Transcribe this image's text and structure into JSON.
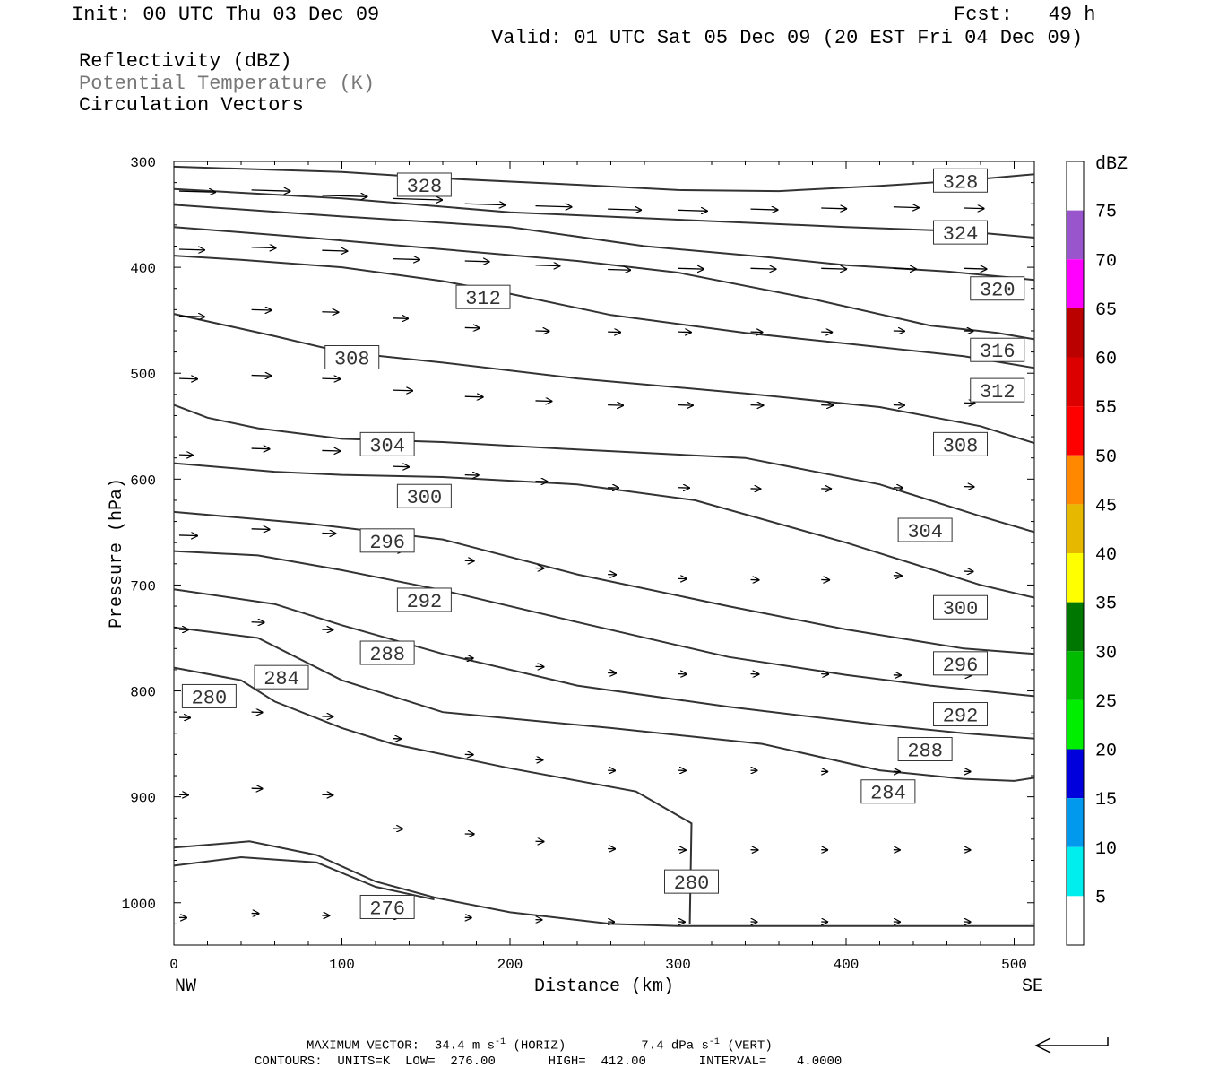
{
  "header": {
    "init": "Init: 00 UTC Thu 03 Dec 09",
    "fcst": "Fcst:   49 h",
    "valid": "Valid: 01 UTC Sat 05 Dec 09 (20 EST Fri 04 Dec 09)"
  },
  "legend_lines": {
    "reflectivity": "Reflectivity (dBZ)",
    "theta": "Potential Temperature (K)",
    "vectors": "Circulation Vectors"
  },
  "chart_data": {
    "type": "line",
    "xlabel": "Distance (km)",
    "ylabel": "Pressure (hPa)",
    "xlim": [
      0,
      512
    ],
    "ylim": [
      300,
      1040
    ],
    "y_scale": "pressure-inverted",
    "grid": false,
    "x_ticks": [
      0,
      100,
      200,
      300,
      400,
      500
    ],
    "y_ticks": [
      300,
      400,
      500,
      600,
      700,
      800,
      900,
      1000
    ],
    "x_endpoint_labels": {
      "left": "NW",
      "right": "SE"
    },
    "contour_interval": 4,
    "series": [
      {
        "name": "276",
        "points": [
          [
            0,
            965
          ],
          [
            40,
            957
          ],
          [
            85,
            962
          ],
          [
            120,
            985
          ],
          [
            155,
            997
          ]
        ]
      },
      {
        "name": "276",
        "points": [
          [
            0,
            948
          ],
          [
            45,
            942
          ],
          [
            85,
            955
          ],
          [
            120,
            980
          ],
          [
            155,
            995
          ],
          [
            200,
            1009
          ],
          [
            260,
            1020
          ],
          [
            300,
            1022
          ],
          [
            512,
            1022
          ]
        ]
      },
      {
        "name": "280",
        "points": [
          [
            0,
            778
          ],
          [
            40,
            790
          ],
          [
            60,
            810
          ],
          [
            100,
            835
          ],
          [
            130,
            850
          ],
          [
            200,
            873
          ],
          [
            275,
            895
          ],
          [
            308,
            925
          ],
          [
            307,
            1020
          ]
        ]
      },
      {
        "name": "284",
        "points": [
          [
            0,
            740
          ],
          [
            50,
            750
          ],
          [
            100,
            790
          ],
          [
            160,
            820
          ],
          [
            260,
            835
          ],
          [
            350,
            850
          ],
          [
            420,
            875
          ],
          [
            470,
            883
          ],
          [
            500,
            885
          ],
          [
            512,
            882
          ]
        ]
      },
      {
        "name": "288",
        "points": [
          [
            0,
            704
          ],
          [
            60,
            718
          ],
          [
            100,
            738
          ],
          [
            160,
            765
          ],
          [
            240,
            795
          ],
          [
            330,
            815
          ],
          [
            420,
            832
          ],
          [
            470,
            840
          ],
          [
            512,
            845
          ]
        ]
      },
      {
        "name": "292",
        "points": [
          [
            0,
            668
          ],
          [
            50,
            672
          ],
          [
            100,
            686
          ],
          [
            160,
            705
          ],
          [
            240,
            735
          ],
          [
            330,
            768
          ],
          [
            400,
            785
          ],
          [
            450,
            795
          ],
          [
            512,
            805
          ]
        ]
      },
      {
        "name": "296",
        "points": [
          [
            0,
            631
          ],
          [
            80,
            642
          ],
          [
            160,
            657
          ],
          [
            240,
            690
          ],
          [
            330,
            720
          ],
          [
            400,
            742
          ],
          [
            470,
            760
          ],
          [
            512,
            765
          ]
        ]
      },
      {
        "name": "300",
        "points": [
          [
            0,
            585
          ],
          [
            60,
            593
          ],
          [
            100,
            596
          ],
          [
            160,
            598
          ],
          [
            240,
            605
          ],
          [
            310,
            620
          ],
          [
            400,
            660
          ],
          [
            480,
            700
          ],
          [
            512,
            712
          ]
        ]
      },
      {
        "name": "304",
        "points": [
          [
            0,
            530
          ],
          [
            20,
            542
          ],
          [
            50,
            552
          ],
          [
            100,
            562
          ],
          [
            160,
            565
          ],
          [
            240,
            572
          ],
          [
            340,
            580
          ],
          [
            420,
            605
          ],
          [
            480,
            635
          ],
          [
            512,
            650
          ]
        ]
      },
      {
        "name": "308",
        "points": [
          [
            0,
            444
          ],
          [
            60,
            465
          ],
          [
            100,
            480
          ],
          [
            160,
            490
          ],
          [
            240,
            505
          ],
          [
            340,
            519
          ],
          [
            420,
            532
          ],
          [
            480,
            550
          ],
          [
            512,
            566
          ]
        ]
      },
      {
        "name": "312",
        "points": [
          [
            0,
            389
          ],
          [
            40,
            393
          ],
          [
            100,
            400
          ],
          [
            160,
            413
          ],
          [
            200,
            425
          ],
          [
            260,
            445
          ],
          [
            340,
            462
          ],
          [
            400,
            472
          ],
          [
            470,
            484
          ],
          [
            512,
            495
          ]
        ]
      },
      {
        "name": "316",
        "points": [
          [
            0,
            362
          ],
          [
            80,
            372
          ],
          [
            160,
            383
          ],
          [
            240,
            394
          ],
          [
            300,
            405
          ],
          [
            380,
            430
          ],
          [
            450,
            455
          ],
          [
            490,
            462
          ],
          [
            512,
            468
          ]
        ]
      },
      {
        "name": "320",
        "points": [
          [
            0,
            341
          ],
          [
            100,
            352
          ],
          [
            200,
            362
          ],
          [
            280,
            380
          ],
          [
            350,
            390
          ],
          [
            400,
            398
          ],
          [
            460,
            404
          ],
          [
            500,
            410
          ],
          [
            512,
            412
          ]
        ]
      },
      {
        "name": "324",
        "points": [
          [
            0,
            326
          ],
          [
            100,
            335
          ],
          [
            200,
            348
          ],
          [
            300,
            355
          ],
          [
            400,
            362
          ],
          [
            470,
            366
          ],
          [
            512,
            372
          ]
        ]
      },
      {
        "name": "328",
        "points": [
          [
            0,
            305
          ],
          [
            100,
            310
          ],
          [
            160,
            316
          ],
          [
            240,
            322
          ],
          [
            300,
            327
          ],
          [
            360,
            328
          ],
          [
            420,
            323
          ],
          [
            470,
            318
          ],
          [
            512,
            312
          ]
        ]
      }
    ],
    "contour_labels": [
      {
        "text": "328",
        "x": 149,
        "y": 322
      },
      {
        "text": "328",
        "x": 468,
        "y": 318
      },
      {
        "text": "324",
        "x": 468,
        "y": 367
      },
      {
        "text": "320",
        "x": 490,
        "y": 420
      },
      {
        "text": "316",
        "x": 490,
        "y": 478
      },
      {
        "text": "312",
        "x": 184,
        "y": 428
      },
      {
        "text": "312",
        "x": 490,
        "y": 516
      },
      {
        "text": "308",
        "x": 106,
        "y": 485
      },
      {
        "text": "308",
        "x": 468,
        "y": 567
      },
      {
        "text": "304",
        "x": 127,
        "y": 567
      },
      {
        "text": "304",
        "x": 447,
        "y": 648
      },
      {
        "text": "300",
        "x": 149,
        "y": 616
      },
      {
        "text": "300",
        "x": 468,
        "y": 721
      },
      {
        "text": "296",
        "x": 127,
        "y": 658
      },
      {
        "text": "296",
        "x": 468,
        "y": 774
      },
      {
        "text": "292",
        "x": 149,
        "y": 714
      },
      {
        "text": "292",
        "x": 468,
        "y": 822
      },
      {
        "text": "288",
        "x": 127,
        "y": 764
      },
      {
        "text": "288",
        "x": 447,
        "y": 855
      },
      {
        "text": "284",
        "x": 64,
        "y": 787
      },
      {
        "text": "284",
        "x": 425,
        "y": 895
      },
      {
        "text": "280",
        "x": 21,
        "y": 805
      },
      {
        "text": "280",
        "x": 308,
        "y": 980
      },
      {
        "text": "276",
        "x": 127,
        "y": 1004
      }
    ],
    "vectors": {
      "note": "Circulation vectors",
      "items": [
        [
          0,
          328,
          40
        ],
        [
          43,
          327,
          43
        ],
        [
          85,
          332,
          50
        ],
        [
          127,
          335,
          55
        ],
        [
          170,
          340,
          45
        ],
        [
          212,
          342,
          40
        ],
        [
          255,
          345,
          37
        ],
        [
          297,
          346,
          32
        ],
        [
          340,
          345,
          30
        ],
        [
          382,
          344,
          28
        ],
        [
          425,
          343,
          28
        ],
        [
          467,
          344,
          22
        ],
        [
          0,
          383,
          28
        ],
        [
          43,
          381,
          27
        ],
        [
          85,
          384,
          28
        ],
        [
          127,
          392,
          30
        ],
        [
          170,
          394,
          27
        ],
        [
          212,
          398,
          27
        ],
        [
          255,
          402,
          25
        ],
        [
          297,
          401,
          28
        ],
        [
          340,
          401,
          28
        ],
        [
          382,
          401,
          28
        ],
        [
          425,
          401,
          25
        ],
        [
          467,
          401,
          25
        ],
        [
          0,
          446,
          28
        ],
        [
          43,
          440,
          22
        ],
        [
          85,
          442,
          18
        ],
        [
          127,
          448,
          17
        ],
        [
          170,
          457,
          16
        ],
        [
          212,
          460,
          15
        ],
        [
          255,
          461,
          14
        ],
        [
          297,
          461,
          14
        ],
        [
          340,
          461,
          13
        ],
        [
          382,
          461,
          12
        ],
        [
          425,
          460,
          12
        ],
        [
          467,
          460,
          10
        ],
        [
          0,
          505,
          20
        ],
        [
          43,
          502,
          22
        ],
        [
          85,
          505,
          20
        ],
        [
          127,
          516,
          22
        ],
        [
          170,
          522,
          20
        ],
        [
          212,
          526,
          18
        ],
        [
          255,
          530,
          17
        ],
        [
          297,
          530,
          16
        ],
        [
          340,
          530,
          14
        ],
        [
          382,
          530,
          13
        ],
        [
          425,
          530,
          12
        ],
        [
          467,
          528,
          12
        ],
        [
          0,
          577,
          15
        ],
        [
          43,
          571,
          20
        ],
        [
          85,
          573,
          20
        ],
        [
          127,
          588,
          18
        ],
        [
          170,
          596,
          15
        ],
        [
          212,
          602,
          13
        ],
        [
          255,
          608,
          12
        ],
        [
          297,
          608,
          12
        ],
        [
          340,
          609,
          11
        ],
        [
          382,
          609,
          11
        ],
        [
          425,
          608,
          10
        ],
        [
          467,
          607,
          11
        ],
        [
          0,
          653,
          20
        ],
        [
          43,
          647,
          20
        ],
        [
          85,
          651,
          15
        ],
        [
          127,
          667,
          12
        ],
        [
          170,
          677,
          10
        ],
        [
          212,
          684,
          9
        ],
        [
          255,
          690,
          9
        ],
        [
          297,
          694,
          9
        ],
        [
          340,
          695,
          9
        ],
        [
          382,
          695,
          9
        ],
        [
          425,
          691,
          9
        ],
        [
          467,
          687,
          10
        ],
        [
          0,
          742,
          10
        ],
        [
          43,
          735,
          14
        ],
        [
          85,
          742,
          12
        ],
        [
          127,
          758,
          10
        ],
        [
          170,
          769,
          9
        ],
        [
          212,
          777,
          9
        ],
        [
          255,
          783,
          9
        ],
        [
          297,
          784,
          9
        ],
        [
          340,
          784,
          9
        ],
        [
          382,
          784,
          8
        ],
        [
          425,
          785,
          8
        ],
        [
          467,
          785,
          8
        ],
        [
          0,
          825,
          12
        ],
        [
          43,
          820,
          12
        ],
        [
          85,
          824,
          12
        ],
        [
          127,
          845,
          9
        ],
        [
          170,
          860,
          9
        ],
        [
          212,
          865,
          8
        ],
        [
          255,
          875,
          8
        ],
        [
          297,
          875,
          8
        ],
        [
          340,
          875,
          7
        ],
        [
          382,
          876,
          7
        ],
        [
          425,
          876,
          7
        ],
        [
          467,
          876,
          7
        ],
        [
          0,
          898,
          10
        ],
        [
          43,
          892,
          12
        ],
        [
          85,
          898,
          12
        ],
        [
          127,
          930,
          11
        ],
        [
          170,
          935,
          10
        ],
        [
          212,
          942,
          9
        ],
        [
          255,
          949,
          8
        ],
        [
          297,
          950,
          8
        ],
        [
          340,
          950,
          8
        ],
        [
          382,
          950,
          7
        ],
        [
          425,
          950,
          7
        ],
        [
          467,
          950,
          7
        ],
        [
          0,
          1014,
          8
        ],
        [
          43,
          1010,
          8
        ],
        [
          85,
          1012,
          8
        ],
        [
          127,
          1013,
          8
        ],
        [
          170,
          1014,
          7
        ],
        [
          212,
          1016,
          7
        ],
        [
          255,
          1018,
          7
        ],
        [
          297,
          1018,
          7
        ],
        [
          340,
          1018,
          7
        ],
        [
          382,
          1018,
          7
        ],
        [
          425,
          1018,
          7
        ],
        [
          467,
          1018,
          7
        ]
      ]
    }
  },
  "colorbar": {
    "unit": "dBZ",
    "labels": [
      "75",
      "70",
      "65",
      "60",
      "55",
      "50",
      "45",
      "40",
      "35",
      "30",
      "25",
      "20",
      "15",
      "10",
      "5"
    ],
    "colors": [
      "#ffffff",
      "#9955cc",
      "#ff00ff",
      "#bb0000",
      "#dd0000",
      "#ff0000",
      "#ff8800",
      "#e6b800",
      "#ffff00",
      "#007700",
      "#00bb00",
      "#00ee00",
      "#0000dd",
      "#0099ee",
      "#00eeee",
      "#ffffff"
    ]
  },
  "footer": {
    "max_vector_prefix": "MAXIMUM VECTOR:  34.4 m s",
    "max_vector_exp1": "-1",
    "max_vector_mid": " (HORIZ)          7.4 dPa s",
    "max_vector_exp2": "-1",
    "max_vector_suffix": " (VERT)",
    "contours": "CONTOURS:  UNITS=K  LOW=  276.00       HIGH=  412.00       INTERVAL=    4.0000"
  }
}
